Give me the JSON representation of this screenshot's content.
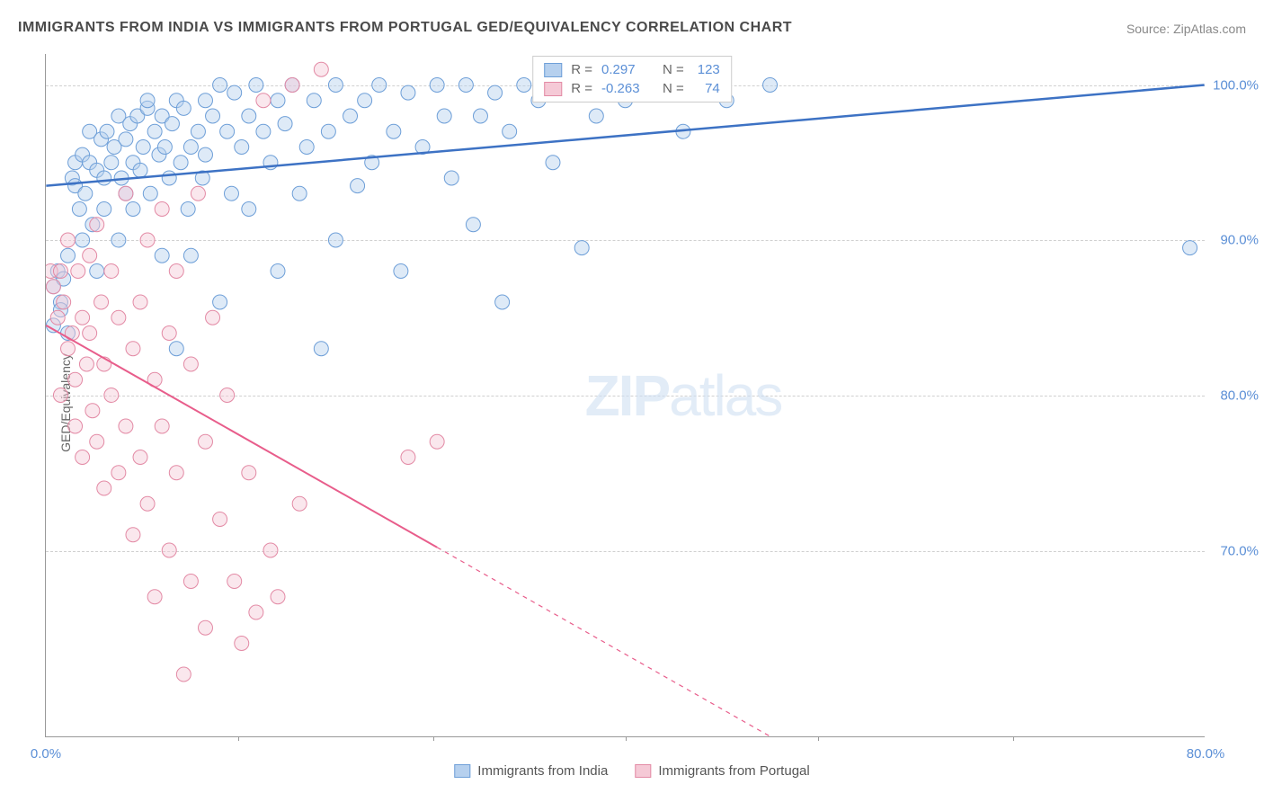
{
  "title": "IMMIGRANTS FROM INDIA VS IMMIGRANTS FROM PORTUGAL GED/EQUIVALENCY CORRELATION CHART",
  "source": "Source: ZipAtlas.com",
  "watermark_bold": "ZIP",
  "watermark_light": "atlas",
  "y_axis_label": "GED/Equivalency",
  "chart": {
    "type": "scatter",
    "xlim": [
      0,
      80
    ],
    "ylim": [
      58,
      102
    ],
    "x_ticks": [
      0,
      80
    ],
    "x_tick_labels": [
      "0.0%",
      "80.0%"
    ],
    "x_minor_ticks": [
      13.3,
      26.7,
      40,
      53.3,
      66.7
    ],
    "y_ticks": [
      70,
      80,
      90,
      100
    ],
    "y_tick_labels": [
      "70.0%",
      "80.0%",
      "90.0%",
      "100.0%"
    ],
    "background_color": "#ffffff",
    "grid_color": "#d0d0d0",
    "point_radius": 8,
    "point_opacity": 0.45,
    "series": [
      {
        "name": "Immigrants from India",
        "color_fill": "#b6d0ee",
        "color_stroke": "#6e9fd8",
        "line_color": "#3d72c4",
        "line_width": 2.5,
        "R": "0.297",
        "N": "123",
        "trend": {
          "x1": 0,
          "y1": 93.5,
          "x2": 80,
          "y2": 100,
          "dash_after_x": 80
        },
        "points": [
          [
            0.5,
            87
          ],
          [
            0.8,
            88
          ],
          [
            1,
            86
          ],
          [
            1,
            85.5
          ],
          [
            1.2,
            87.5
          ],
          [
            1.5,
            89
          ],
          [
            1.5,
            84
          ],
          [
            0.5,
            84.5
          ],
          [
            1.8,
            94
          ],
          [
            2,
            95
          ],
          [
            2,
            93.5
          ],
          [
            2.3,
            92
          ],
          [
            2.5,
            95.5
          ],
          [
            2.5,
            90
          ],
          [
            2.7,
            93
          ],
          [
            3,
            95
          ],
          [
            3,
            97
          ],
          [
            3.2,
            91
          ],
          [
            3.5,
            94.5
          ],
          [
            3.5,
            88
          ],
          [
            3.8,
            96.5
          ],
          [
            4,
            94
          ],
          [
            4,
            92
          ],
          [
            4.2,
            97
          ],
          [
            4.5,
            95
          ],
          [
            4.7,
            96
          ],
          [
            5,
            98
          ],
          [
            5,
            90
          ],
          [
            5.2,
            94
          ],
          [
            5.5,
            96.5
          ],
          [
            5.5,
            93
          ],
          [
            5.8,
            97.5
          ],
          [
            6,
            95
          ],
          [
            6,
            92
          ],
          [
            6.3,
            98
          ],
          [
            6.5,
            94.5
          ],
          [
            6.7,
            96
          ],
          [
            7,
            98.5
          ],
          [
            7,
            99
          ],
          [
            7.2,
            93
          ],
          [
            7.5,
            97
          ],
          [
            7.8,
            95.5
          ],
          [
            8,
            98
          ],
          [
            8,
            89
          ],
          [
            8.2,
            96
          ],
          [
            8.5,
            94
          ],
          [
            8.7,
            97.5
          ],
          [
            9,
            99
          ],
          [
            9,
            83
          ],
          [
            9.3,
            95
          ],
          [
            9.5,
            98.5
          ],
          [
            9.8,
            92
          ],
          [
            10,
            96
          ],
          [
            10,
            89
          ],
          [
            10.5,
            97
          ],
          [
            10.8,
            94
          ],
          [
            11,
            99
          ],
          [
            11,
            95.5
          ],
          [
            11.5,
            98
          ],
          [
            12,
            100
          ],
          [
            12,
            86
          ],
          [
            12.5,
            97
          ],
          [
            12.8,
            93
          ],
          [
            13,
            99.5
          ],
          [
            13.5,
            96
          ],
          [
            14,
            98
          ],
          [
            14,
            92
          ],
          [
            14.5,
            100
          ],
          [
            15,
            97
          ],
          [
            15.5,
            95
          ],
          [
            16,
            99
          ],
          [
            16,
            88
          ],
          [
            16.5,
            97.5
          ],
          [
            17,
            100
          ],
          [
            17.5,
            93
          ],
          [
            18,
            96
          ],
          [
            18.5,
            99
          ],
          [
            19,
            83
          ],
          [
            19.5,
            97
          ],
          [
            20,
            100
          ],
          [
            20,
            90
          ],
          [
            21,
            98
          ],
          [
            21.5,
            93.5
          ],
          [
            22,
            99
          ],
          [
            22.5,
            95
          ],
          [
            23,
            100
          ],
          [
            24,
            97
          ],
          [
            24.5,
            88
          ],
          [
            25,
            99.5
          ],
          [
            26,
            96
          ],
          [
            27,
            100
          ],
          [
            27.5,
            98
          ],
          [
            28,
            94
          ],
          [
            29,
            100
          ],
          [
            29.5,
            91
          ],
          [
            30,
            98
          ],
          [
            31,
            99.5
          ],
          [
            31.5,
            86
          ],
          [
            32,
            97
          ],
          [
            33,
            100
          ],
          [
            34,
            99
          ],
          [
            35,
            95
          ],
          [
            36,
            100
          ],
          [
            37,
            89.5
          ],
          [
            38,
            98
          ],
          [
            40,
            99
          ],
          [
            42,
            100
          ],
          [
            44,
            97
          ],
          [
            47,
            99
          ],
          [
            50,
            100
          ],
          [
            79,
            89.5
          ]
        ]
      },
      {
        "name": "Immigrants from Portugal",
        "color_fill": "#f5c9d6",
        "color_stroke": "#e38aa5",
        "line_color": "#e85d8b",
        "line_width": 2,
        "R": "-0.263",
        "N": "74",
        "trend": {
          "x1": 0,
          "y1": 84.5,
          "x2": 50,
          "y2": 58,
          "dash_after_x": 27
        },
        "points": [
          [
            0.3,
            88
          ],
          [
            0.5,
            87
          ],
          [
            0.8,
            85
          ],
          [
            1,
            88
          ],
          [
            1,
            80
          ],
          [
            1.2,
            86
          ],
          [
            1.5,
            83
          ],
          [
            1.5,
            90
          ],
          [
            1.8,
            84
          ],
          [
            2,
            81
          ],
          [
            2,
            78
          ],
          [
            2.2,
            88
          ],
          [
            2.5,
            85
          ],
          [
            2.5,
            76
          ],
          [
            2.8,
            82
          ],
          [
            3,
            89
          ],
          [
            3,
            84
          ],
          [
            3.2,
            79
          ],
          [
            3.5,
            91
          ],
          [
            3.5,
            77
          ],
          [
            3.8,
            86
          ],
          [
            4,
            82
          ],
          [
            4,
            74
          ],
          [
            4.5,
            88
          ],
          [
            4.5,
            80
          ],
          [
            5,
            85
          ],
          [
            5,
            75
          ],
          [
            5.5,
            93
          ],
          [
            5.5,
            78
          ],
          [
            6,
            83
          ],
          [
            6,
            71
          ],
          [
            6.5,
            86
          ],
          [
            6.5,
            76
          ],
          [
            7,
            90
          ],
          [
            7,
            73
          ],
          [
            7.5,
            81
          ],
          [
            7.5,
            67
          ],
          [
            8,
            92
          ],
          [
            8,
            78
          ],
          [
            8.5,
            84
          ],
          [
            8.5,
            70
          ],
          [
            9,
            88
          ],
          [
            9,
            75
          ],
          [
            9.5,
            62
          ],
          [
            10,
            82
          ],
          [
            10,
            68
          ],
          [
            10.5,
            93
          ],
          [
            11,
            77
          ],
          [
            11,
            65
          ],
          [
            11.5,
            85
          ],
          [
            12,
            72
          ],
          [
            12.5,
            80
          ],
          [
            13,
            68
          ],
          [
            13.5,
            64
          ],
          [
            14,
            75
          ],
          [
            14.5,
            66
          ],
          [
            15,
            99
          ],
          [
            15.5,
            70
          ],
          [
            16,
            67
          ],
          [
            17,
            100
          ],
          [
            17.5,
            73
          ],
          [
            19,
            101
          ],
          [
            25,
            76
          ],
          [
            27,
            77
          ]
        ]
      }
    ]
  },
  "legend_top": {
    "R_label": "R =",
    "N_label": "N ="
  },
  "legend_bottom": [
    {
      "label": "Immigrants from India",
      "fill": "#b6d0ee",
      "stroke": "#6e9fd8"
    },
    {
      "label": "Immigrants from Portugal",
      "fill": "#f5c9d6",
      "stroke": "#e38aa5"
    }
  ]
}
